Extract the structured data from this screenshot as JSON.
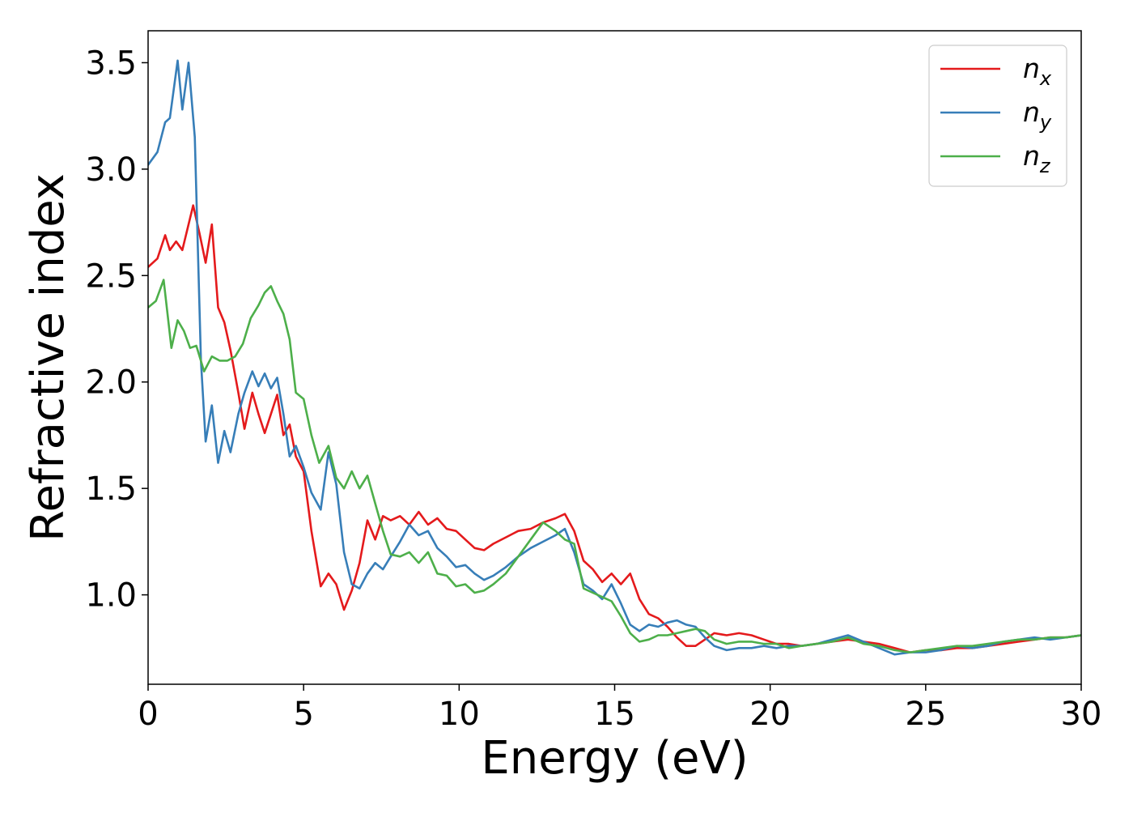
{
  "chart_data": {
    "type": "line",
    "title": "",
    "xlabel": "Energy (eV)",
    "ylabel": "Refractive index",
    "xlim": [
      0,
      30
    ],
    "ylim": [
      0.58,
      3.65
    ],
    "xticks": [
      0,
      5,
      10,
      15,
      20,
      25,
      30
    ],
    "xtick_labels": [
      "0",
      "5",
      "10",
      "15",
      "20",
      "25",
      "30"
    ],
    "yticks": [
      1.0,
      1.5,
      2.0,
      2.5,
      3.0,
      3.5
    ],
    "ytick_labels": [
      "1.0",
      "1.5",
      "2.0",
      "2.5",
      "3.0",
      "3.5"
    ],
    "grid": false,
    "legend_position": "top-right",
    "series": [
      {
        "name": "n",
        "subscript": "x",
        "color": "#e41a1c",
        "x": [
          0,
          0.3,
          0.55,
          0.7,
          0.9,
          1.1,
          1.45,
          1.65,
          1.85,
          2.05,
          2.25,
          2.45,
          2.65,
          2.9,
          3.1,
          3.35,
          3.55,
          3.75,
          3.95,
          4.15,
          4.35,
          4.55,
          4.75,
          5.0,
          5.25,
          5.55,
          5.8,
          6.05,
          6.3,
          6.55,
          6.8,
          7.05,
          7.3,
          7.55,
          7.8,
          8.1,
          8.4,
          8.7,
          9.0,
          9.3,
          9.6,
          9.9,
          10.2,
          10.5,
          10.8,
          11.1,
          11.5,
          11.9,
          12.3,
          12.7,
          13.1,
          13.4,
          13.7,
          14.0,
          14.3,
          14.6,
          14.9,
          15.2,
          15.5,
          15.8,
          16.1,
          16.4,
          16.7,
          17.0,
          17.3,
          17.6,
          17.9,
          18.2,
          18.6,
          19.0,
          19.4,
          19.8,
          20.2,
          20.6,
          21.0,
          21.5,
          22.0,
          22.5,
          23.0,
          23.5,
          24.0,
          24.5,
          25.0,
          25.5,
          26.0,
          26.5,
          27.0,
          27.5,
          28.0,
          28.5,
          29.0,
          29.5,
          30.0
        ],
        "y": [
          2.54,
          2.58,
          2.69,
          2.62,
          2.66,
          2.62,
          2.83,
          2.7,
          2.56,
          2.74,
          2.35,
          2.28,
          2.15,
          1.95,
          1.78,
          1.95,
          1.85,
          1.76,
          1.85,
          1.94,
          1.75,
          1.8,
          1.65,
          1.58,
          1.3,
          1.04,
          1.1,
          1.05,
          0.93,
          1.02,
          1.15,
          1.35,
          1.26,
          1.37,
          1.35,
          1.37,
          1.33,
          1.39,
          1.33,
          1.36,
          1.31,
          1.3,
          1.26,
          1.22,
          1.21,
          1.24,
          1.27,
          1.3,
          1.31,
          1.34,
          1.36,
          1.38,
          1.3,
          1.16,
          1.12,
          1.06,
          1.1,
          1.05,
          1.1,
          0.98,
          0.91,
          0.89,
          0.85,
          0.8,
          0.76,
          0.76,
          0.79,
          0.82,
          0.81,
          0.82,
          0.81,
          0.79,
          0.77,
          0.77,
          0.76,
          0.77,
          0.78,
          0.79,
          0.78,
          0.77,
          0.75,
          0.73,
          0.74,
          0.74,
          0.75,
          0.75,
          0.76,
          0.77,
          0.78,
          0.79,
          0.8,
          0.8,
          0.81
        ]
      },
      {
        "name": "n",
        "subscript": "y",
        "color": "#377eb8",
        "x": [
          0,
          0.3,
          0.55,
          0.7,
          0.95,
          1.1,
          1.3,
          1.5,
          1.7,
          1.85,
          2.05,
          2.25,
          2.45,
          2.65,
          2.9,
          3.1,
          3.35,
          3.55,
          3.75,
          3.95,
          4.15,
          4.35,
          4.55,
          4.75,
          5.0,
          5.25,
          5.55,
          5.8,
          6.05,
          6.3,
          6.55,
          6.8,
          7.05,
          7.3,
          7.55,
          7.8,
          8.1,
          8.4,
          8.7,
          9.0,
          9.3,
          9.6,
          9.9,
          10.2,
          10.5,
          10.8,
          11.1,
          11.5,
          11.9,
          12.3,
          12.7,
          13.1,
          13.4,
          13.7,
          14.0,
          14.3,
          14.6,
          14.9,
          15.2,
          15.5,
          15.8,
          16.1,
          16.4,
          16.7,
          17.0,
          17.3,
          17.6,
          17.9,
          18.2,
          18.6,
          19.0,
          19.4,
          19.8,
          20.2,
          20.6,
          21.0,
          21.5,
          22.0,
          22.5,
          23.0,
          23.5,
          24.0,
          24.5,
          25.0,
          25.5,
          26.0,
          26.5,
          27.0,
          27.5,
          28.0,
          28.5,
          29.0,
          29.5,
          30.0
        ],
        "y": [
          3.02,
          3.08,
          3.22,
          3.24,
          3.51,
          3.28,
          3.5,
          3.15,
          2.1,
          1.72,
          1.89,
          1.62,
          1.77,
          1.67,
          1.85,
          1.95,
          2.05,
          1.98,
          2.04,
          1.97,
          2.02,
          1.85,
          1.65,
          1.7,
          1.6,
          1.48,
          1.4,
          1.67,
          1.52,
          1.2,
          1.05,
          1.03,
          1.1,
          1.15,
          1.12,
          1.18,
          1.25,
          1.33,
          1.28,
          1.3,
          1.22,
          1.18,
          1.13,
          1.14,
          1.1,
          1.07,
          1.09,
          1.13,
          1.18,
          1.22,
          1.25,
          1.28,
          1.31,
          1.2,
          1.05,
          1.02,
          0.98,
          1.05,
          0.96,
          0.86,
          0.83,
          0.86,
          0.85,
          0.87,
          0.88,
          0.86,
          0.85,
          0.8,
          0.76,
          0.74,
          0.75,
          0.75,
          0.76,
          0.75,
          0.76,
          0.76,
          0.77,
          0.79,
          0.81,
          0.78,
          0.75,
          0.72,
          0.73,
          0.73,
          0.74,
          0.76,
          0.75,
          0.76,
          0.78,
          0.79,
          0.8,
          0.79,
          0.8,
          0.81
        ]
      },
      {
        "name": "n",
        "subscript": "z",
        "color": "#4daf4a",
        "x": [
          0,
          0.25,
          0.5,
          0.75,
          0.95,
          1.15,
          1.35,
          1.55,
          1.8,
          2.05,
          2.3,
          2.55,
          2.8,
          3.05,
          3.3,
          3.55,
          3.75,
          3.95,
          4.15,
          4.35,
          4.55,
          4.75,
          5.0,
          5.25,
          5.5,
          5.8,
          6.05,
          6.3,
          6.55,
          6.8,
          7.05,
          7.3,
          7.55,
          7.8,
          8.1,
          8.4,
          8.7,
          9.0,
          9.3,
          9.6,
          9.9,
          10.2,
          10.5,
          10.8,
          11.1,
          11.5,
          11.9,
          12.3,
          12.7,
          13.1,
          13.4,
          13.7,
          14.0,
          14.3,
          14.6,
          14.9,
          15.2,
          15.5,
          15.8,
          16.1,
          16.4,
          16.7,
          17.0,
          17.3,
          17.6,
          17.9,
          18.2,
          18.6,
          19.0,
          19.4,
          19.8,
          20.2,
          20.6,
          21.0,
          21.5,
          22.0,
          22.5,
          23.0,
          23.5,
          24.0,
          24.5,
          25.0,
          25.5,
          26.0,
          26.5,
          27.0,
          27.5,
          28.0,
          28.5,
          29.0,
          29.5,
          30.0
        ],
        "y": [
          2.35,
          2.38,
          2.48,
          2.16,
          2.29,
          2.24,
          2.16,
          2.17,
          2.05,
          2.12,
          2.1,
          2.1,
          2.12,
          2.18,
          2.3,
          2.36,
          2.42,
          2.45,
          2.38,
          2.32,
          2.2,
          1.95,
          1.92,
          1.75,
          1.62,
          1.7,
          1.55,
          1.5,
          1.58,
          1.5,
          1.56,
          1.43,
          1.3,
          1.19,
          1.18,
          1.2,
          1.15,
          1.2,
          1.1,
          1.09,
          1.04,
          1.05,
          1.01,
          1.02,
          1.05,
          1.1,
          1.18,
          1.26,
          1.34,
          1.3,
          1.26,
          1.24,
          1.03,
          1.01,
          0.99,
          0.97,
          0.9,
          0.82,
          0.78,
          0.79,
          0.81,
          0.81,
          0.82,
          0.83,
          0.84,
          0.83,
          0.79,
          0.77,
          0.78,
          0.78,
          0.77,
          0.77,
          0.75,
          0.76,
          0.77,
          0.78,
          0.8,
          0.77,
          0.76,
          0.74,
          0.73,
          0.74,
          0.75,
          0.76,
          0.76,
          0.77,
          0.78,
          0.79,
          0.79,
          0.8,
          0.8,
          0.81
        ]
      }
    ]
  }
}
